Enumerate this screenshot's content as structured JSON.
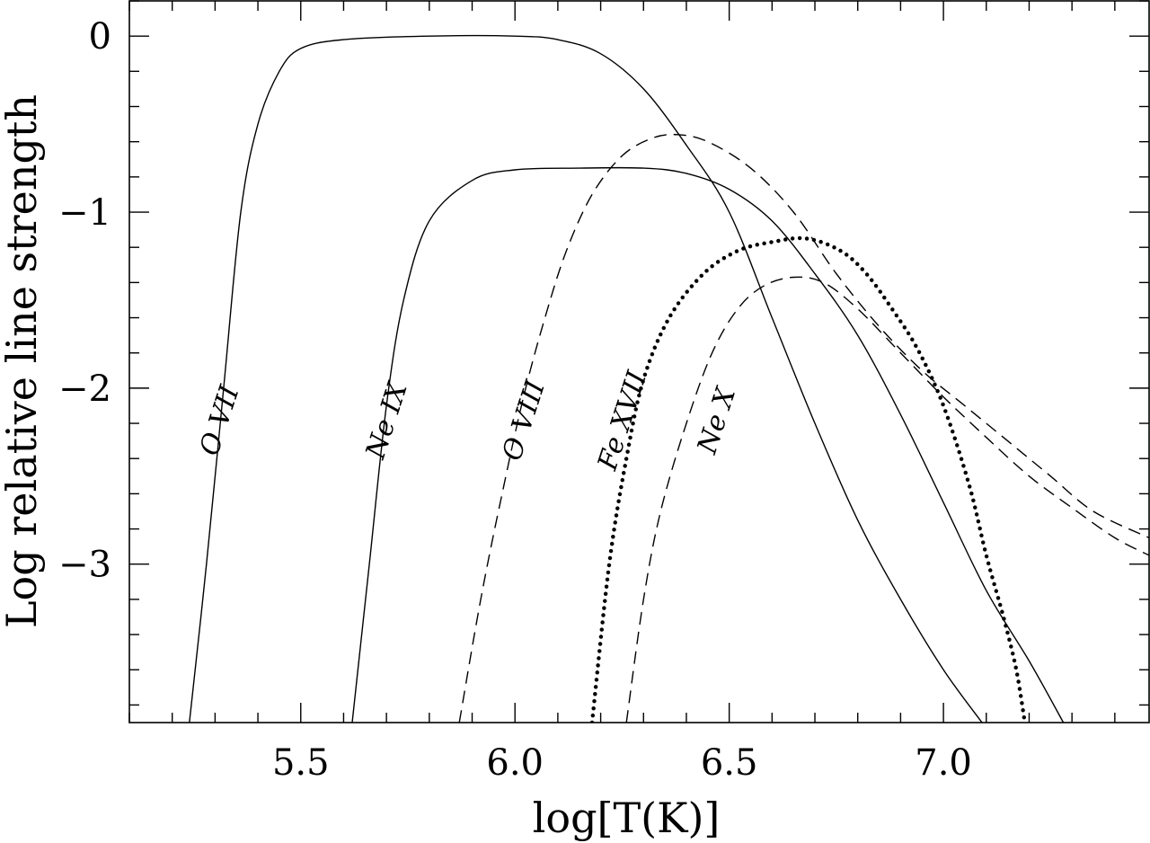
{
  "chart_data": {
    "type": "line",
    "xlabel": "log[T(K)]",
    "ylabel": "Log relative line strength",
    "xlim": [
      5.1,
      7.48
    ],
    "ylim": [
      -3.9,
      0.2
    ],
    "x_ticks": [
      "5.5",
      "6.0",
      "6.5",
      "7.0"
    ],
    "x_tick_values": [
      5.5,
      6.0,
      6.5,
      7.0
    ],
    "y_ticks": [
      "0",
      "−1",
      "−2",
      "−3"
    ],
    "y_tick_values": [
      0,
      -1,
      -2,
      -3
    ],
    "grid": false,
    "legend": "none",
    "series": [
      {
        "name": "O VII",
        "style": "solid",
        "points": [
          [
            5.24,
            -3.9
          ],
          [
            5.28,
            -3.0
          ],
          [
            5.32,
            -2.0
          ],
          [
            5.36,
            -1.0
          ],
          [
            5.4,
            -0.5
          ],
          [
            5.45,
            -0.2
          ],
          [
            5.5,
            -0.07
          ],
          [
            5.6,
            -0.02
          ],
          [
            5.8,
            0.0
          ],
          [
            6.0,
            0.0
          ],
          [
            6.1,
            -0.02
          ],
          [
            6.2,
            -0.1
          ],
          [
            6.3,
            -0.3
          ],
          [
            6.4,
            -0.62
          ],
          [
            6.5,
            -1.0
          ],
          [
            6.6,
            -1.6
          ],
          [
            6.7,
            -2.2
          ],
          [
            6.8,
            -2.75
          ],
          [
            6.9,
            -3.2
          ],
          [
            7.0,
            -3.6
          ],
          [
            7.09,
            -3.9
          ]
        ]
      },
      {
        "name": "Ne IX",
        "style": "solid",
        "points": [
          [
            5.62,
            -3.9
          ],
          [
            5.66,
            -3.0
          ],
          [
            5.7,
            -2.1
          ],
          [
            5.74,
            -1.5
          ],
          [
            5.8,
            -1.05
          ],
          [
            5.9,
            -0.82
          ],
          [
            6.0,
            -0.76
          ],
          [
            6.15,
            -0.75
          ],
          [
            6.3,
            -0.75
          ],
          [
            6.4,
            -0.78
          ],
          [
            6.5,
            -0.87
          ],
          [
            6.6,
            -1.05
          ],
          [
            6.7,
            -1.35
          ],
          [
            6.8,
            -1.7
          ],
          [
            6.9,
            -2.15
          ],
          [
            7.0,
            -2.65
          ],
          [
            7.1,
            -3.15
          ],
          [
            7.2,
            -3.55
          ],
          [
            7.28,
            -3.9
          ]
        ]
      },
      {
        "name": "O VIII",
        "style": "dashed",
        "points": [
          [
            5.87,
            -3.9
          ],
          [
            5.92,
            -3.2
          ],
          [
            5.97,
            -2.6
          ],
          [
            6.02,
            -2.05
          ],
          [
            6.07,
            -1.6
          ],
          [
            6.12,
            -1.22
          ],
          [
            6.18,
            -0.9
          ],
          [
            6.25,
            -0.68
          ],
          [
            6.32,
            -0.58
          ],
          [
            6.38,
            -0.56
          ],
          [
            6.45,
            -0.6
          ],
          [
            6.55,
            -0.75
          ],
          [
            6.65,
            -1.0
          ],
          [
            6.75,
            -1.35
          ],
          [
            6.85,
            -1.65
          ],
          [
            6.95,
            -1.9
          ],
          [
            7.05,
            -2.1
          ],
          [
            7.15,
            -2.3
          ],
          [
            7.25,
            -2.5
          ],
          [
            7.35,
            -2.7
          ],
          [
            7.48,
            -2.85
          ]
        ]
      },
      {
        "name": "Fe XVII",
        "style": "dotted",
        "points": [
          [
            6.18,
            -3.9
          ],
          [
            6.22,
            -3.0
          ],
          [
            6.26,
            -2.4
          ],
          [
            6.3,
            -1.95
          ],
          [
            6.36,
            -1.6
          ],
          [
            6.44,
            -1.35
          ],
          [
            6.52,
            -1.22
          ],
          [
            6.6,
            -1.17
          ],
          [
            6.68,
            -1.15
          ],
          [
            6.76,
            -1.22
          ],
          [
            6.82,
            -1.35
          ],
          [
            6.88,
            -1.55
          ],
          [
            6.94,
            -1.78
          ],
          [
            7.0,
            -2.1
          ],
          [
            7.06,
            -2.55
          ],
          [
            7.1,
            -2.95
          ],
          [
            7.14,
            -3.3
          ],
          [
            7.17,
            -3.6
          ],
          [
            7.19,
            -3.9
          ]
        ]
      },
      {
        "name": "Ne X",
        "style": "dashed",
        "points": [
          [
            6.26,
            -3.9
          ],
          [
            6.3,
            -3.2
          ],
          [
            6.34,
            -2.7
          ],
          [
            6.4,
            -2.2
          ],
          [
            6.46,
            -1.8
          ],
          [
            6.52,
            -1.55
          ],
          [
            6.58,
            -1.42
          ],
          [
            6.65,
            -1.37
          ],
          [
            6.72,
            -1.4
          ],
          [
            6.8,
            -1.55
          ],
          [
            6.9,
            -1.8
          ],
          [
            7.0,
            -2.05
          ],
          [
            7.1,
            -2.28
          ],
          [
            7.2,
            -2.5
          ],
          [
            7.3,
            -2.68
          ],
          [
            7.4,
            -2.85
          ],
          [
            7.48,
            -2.95
          ]
        ]
      }
    ],
    "annotations": [
      {
        "text": "O VII",
        "x": 5.33,
        "y": -2.2
      },
      {
        "text": "Ne IX",
        "x": 5.72,
        "y": -2.2
      },
      {
        "text": "O VIII",
        "x": 6.04,
        "y": -2.2
      },
      {
        "text": "Fe XVII",
        "x": 6.27,
        "y": -2.2
      },
      {
        "text": "Ne X",
        "x": 6.49,
        "y": -2.2
      }
    ]
  }
}
